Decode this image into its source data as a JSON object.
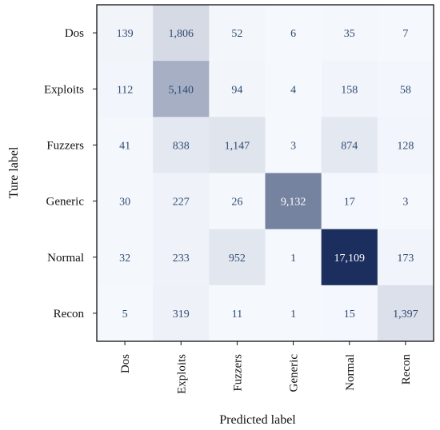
{
  "chart_data": {
    "type": "heatmap",
    "title": "",
    "xlabel": "Predicted label",
    "ylabel": "Ture label",
    "x_categories": [
      "Dos",
      "Exploits",
      "Fuzzers",
      "Generic",
      "Normal",
      "Recon"
    ],
    "y_categories": [
      "Dos",
      "Exploits",
      "Fuzzers",
      "Generic",
      "Normal",
      "Recon"
    ],
    "values": [
      [
        139,
        1806,
        52,
        6,
        35,
        7
      ],
      [
        112,
        5140,
        94,
        4,
        158,
        58
      ],
      [
        41,
        838,
        1147,
        3,
        874,
        128
      ],
      [
        30,
        227,
        26,
        9132,
        17,
        3
      ],
      [
        32,
        233,
        952,
        1,
        17109,
        173
      ],
      [
        5,
        319,
        11,
        1,
        15,
        1397
      ]
    ],
    "value_labels": [
      [
        "139",
        "1,806",
        "52",
        "6",
        "35",
        "7"
      ],
      [
        "112",
        "5,140",
        "94",
        "4",
        "158",
        "58"
      ],
      [
        "41",
        "838",
        "1,147",
        "3",
        "874",
        "128"
      ],
      [
        "30",
        "227",
        "26",
        "9,132",
        "17",
        "3"
      ],
      [
        "32",
        "233",
        "952",
        "1",
        "17,109",
        "173"
      ],
      [
        "5",
        "319",
        "11",
        "1",
        "15",
        "1,397"
      ]
    ],
    "colormap": {
      "low": "#f5f8fd",
      "high": "#1b2e5e",
      "label_dark": "#2f4b73",
      "label_light": "#ffffff"
    },
    "colorbar": false
  }
}
